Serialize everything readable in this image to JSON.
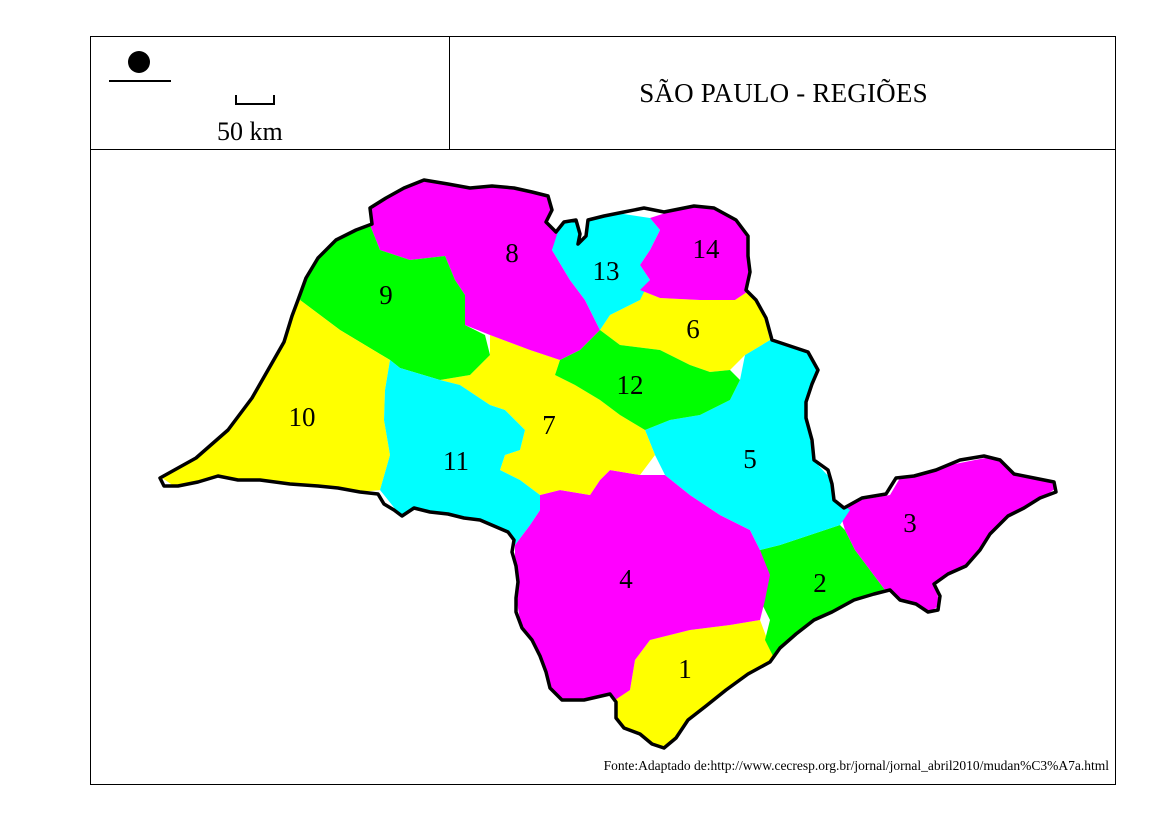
{
  "header": {
    "title": "SÃO PAULO - REGIÕES",
    "scale_label": "50 km"
  },
  "source_note": "Fonte:Adaptado de:http://www.cecresp.org.br/jornal/jornal_abril2010/mudan%C3%A7a.html",
  "colors": {
    "magenta": "#ff00ff",
    "yellow": "#ffff00",
    "green": "#00ff00",
    "cyan": "#00ffff",
    "outline": "#000000"
  },
  "regions": [
    {
      "id": "1",
      "label": "1",
      "color": "#ffff00"
    },
    {
      "id": "2",
      "label": "2",
      "color": "#00ff00"
    },
    {
      "id": "3",
      "label": "3",
      "color": "#ff00ff"
    },
    {
      "id": "4",
      "label": "4",
      "color": "#ff00ff"
    },
    {
      "id": "5",
      "label": "5",
      "color": "#00ffff"
    },
    {
      "id": "6",
      "label": "6",
      "color": "#ffff00"
    },
    {
      "id": "7",
      "label": "7",
      "color": "#ffff00"
    },
    {
      "id": "8",
      "label": "8",
      "color": "#ff00ff"
    },
    {
      "id": "9",
      "label": "9",
      "color": "#00ff00"
    },
    {
      "id": "10",
      "label": "10",
      "color": "#ffff00"
    },
    {
      "id": "11",
      "label": "11",
      "color": "#00ffff"
    },
    {
      "id": "12",
      "label": "12",
      "color": "#00ff00"
    },
    {
      "id": "13",
      "label": "13",
      "color": "#00ffff"
    },
    {
      "id": "14",
      "label": "14",
      "color": "#ff00ff"
    }
  ]
}
